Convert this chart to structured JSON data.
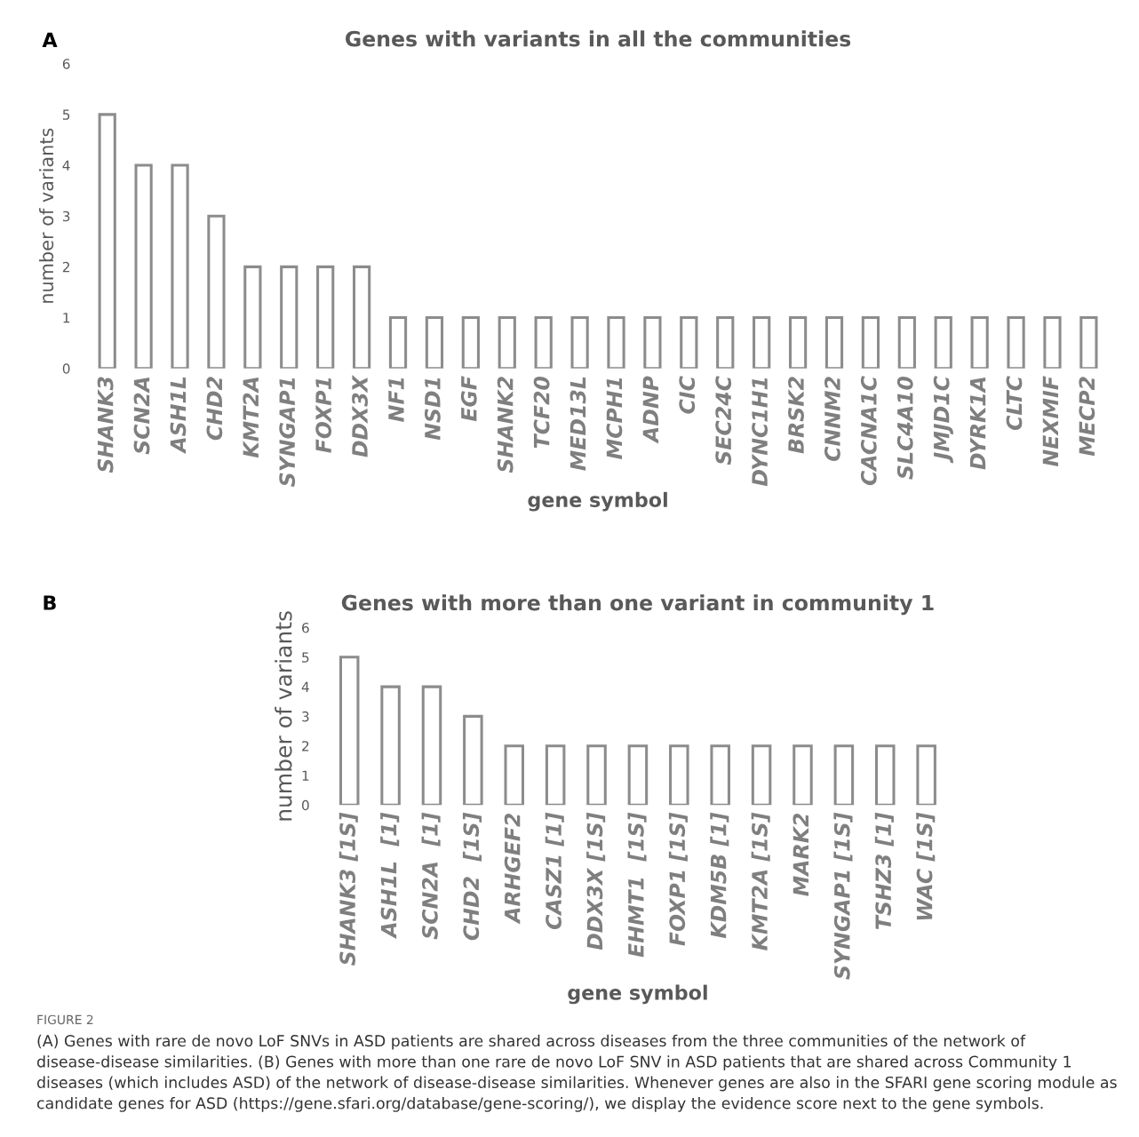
{
  "chart_data": [
    {
      "type": "bar",
      "title": "Genes with variants in all the communities",
      "xlabel": "gene symbol",
      "ylabel": "number of variants",
      "categories": [
        "SHANK3",
        "SCN2A",
        "ASH1L",
        "CHD2",
        "KMT2A",
        "SYNGAP1",
        "FOXP1",
        "DDX3X",
        "NF1",
        "NSD1",
        "EGF",
        "SHANK2",
        "TCF20",
        "MED13L",
        "MCPH1",
        "ADNP",
        "CIC",
        "SEC24C",
        "DYNC1H1",
        "BRSK2",
        "CNNM2",
        "CACNA1C",
        "SLC4A10",
        "JMJD1C",
        "DYRK1A",
        "CLTC",
        "NEXMIF",
        "MECP2"
      ],
      "values": [
        5,
        4,
        4,
        3,
        2,
        2,
        2,
        2,
        1,
        1,
        1,
        1,
        1,
        1,
        1,
        1,
        1,
        1,
        1,
        1,
        1,
        1,
        1,
        1,
        1,
        1,
        1,
        1
      ],
      "color": "#8c8c8c",
      "ylim": [
        0,
        6
      ],
      "yticks": [
        0,
        1,
        2,
        3,
        4,
        5,
        6
      ],
      "grid": false,
      "legend": false,
      "annotations": [
        "A"
      ]
    },
    {
      "type": "bar",
      "title": "Genes with more than one variant in community 1",
      "xlabel": "gene symbol",
      "ylabel": "number of variants",
      "categories": [
        "SHANK3 [1S]",
        "ASH1L  [1]",
        "SCN2A  [1]",
        "CHD2  [1S]",
        "ARHGEF2",
        "CASZ1 [1]",
        "DDX3X [1S]",
        "EHMT1  [1S]",
        "FOXP1 [1S]",
        "KDM5B [1]",
        "KMT2A [1S]",
        "MARK2",
        "SYNGAP1 [1S]",
        "TSHZ3 [1]",
        "WAC [1S]"
      ],
      "values": [
        5,
        4,
        4,
        3,
        2,
        2,
        2,
        2,
        2,
        2,
        2,
        2,
        2,
        2,
        2
      ],
      "color": "#8c8c8c",
      "ylim": [
        0,
        6
      ],
      "yticks": [
        0,
        1,
        2,
        3,
        4,
        5,
        6
      ],
      "grid": false,
      "legend": false,
      "annotations": [
        "B",
        "FIGURE 2",
        "(A) Genes with rare de novo LoF SNVs in ASD patients are shared across diseases from the three communities of the network of disease-disease similarities. (B) Genes with more than one rare de novo LoF SNV in ASD patients that are shared across Community 1 diseases (which includes ASD) of the network of disease-disease similarities. Whenever genes are also in the SFARI gene scoring module as candidate genes for ASD (https://gene.sfari.org/database/gene-scoring/), we display the evidence score next to the gene symbols."
      ]
    }
  ]
}
